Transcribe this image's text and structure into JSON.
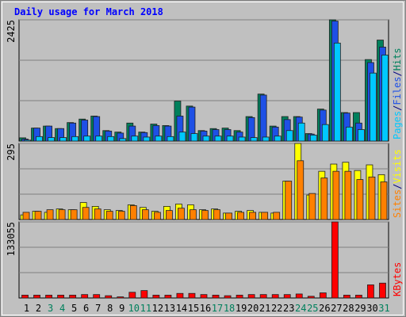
{
  "chart_data": {
    "type": "bar",
    "title": "Daily usage for March 2018",
    "categories": [
      "1",
      "2",
      "3",
      "4",
      "5",
      "6",
      "7",
      "8",
      "9",
      "10",
      "11",
      "12",
      "13",
      "14",
      "15",
      "16",
      "17",
      "18",
      "19",
      "20",
      "21",
      "22",
      "23",
      "24",
      "25",
      "26",
      "27",
      "28",
      "29",
      "30",
      "31"
    ],
    "category_colors": [
      "#000000",
      "#000000",
      "#00805c",
      "#00805c",
      "#000000",
      "#000000",
      "#000000",
      "#000000",
      "#000000",
      "#00805c",
      "#00805c",
      "#000000",
      "#000000",
      "#000000",
      "#000000",
      "#000000",
      "#00805c",
      "#00805c",
      "#000000",
      "#000000",
      "#000000",
      "#000000",
      "#000000",
      "#00805c",
      "#00805c",
      "#000000",
      "#000000",
      "#000000",
      "#000000",
      "#000000",
      "#00805c"
    ],
    "legend_separator": "/",
    "grid": true,
    "grid_divisions": 3,
    "panels": [
      {
        "ylim": [
          0,
          2425
        ],
        "yticks": [
          2425
        ],
        "series": [
          {
            "name": "Hits",
            "color": "#00805c",
            "values": [
              65,
              260,
              300,
              250,
              370,
              440,
              500,
              210,
              180,
              360,
              180,
              340,
              310,
              800,
              700,
              210,
              250,
              260,
              210,
              490,
              940,
              300,
              490,
              490,
              150,
              640,
              2425,
              570,
              570,
              1630,
              2020
            ]
          },
          {
            "name": "Files",
            "color": "#1e50e6",
            "values": [
              40,
              260,
              300,
              250,
              360,
              420,
              490,
              200,
              160,
              300,
              170,
              310,
              300,
              500,
              680,
              200,
              230,
              230,
              180,
              470,
              920,
              280,
              430,
              480,
              140,
              620,
              2400,
              560,
              360,
              1570,
              1880
            ]
          },
          {
            "name": "Pages",
            "color": "#00c8ff",
            "values": [
              20,
              90,
              70,
              70,
              90,
              100,
              100,
              90,
              50,
              100,
              80,
              100,
              90,
              180,
              150,
              100,
              100,
              100,
              80,
              70,
              80,
              100,
              210,
              360,
              120,
              330,
              1960,
              280,
              230,
              1360,
              1720
            ]
          }
        ]
      },
      {
        "ylim": [
          0,
          295
        ],
        "yticks": [
          295
        ],
        "series": [
          {
            "name": "Visits",
            "color": "#ffff00",
            "values": [
              18,
              32,
              28,
              41,
              38,
              66,
              51,
              38,
              35,
              57,
              47,
              32,
              51,
              60,
              57,
              38,
              41,
              25,
              32,
              35,
              28,
              25,
              149,
              295,
              95,
              187,
              215,
              222,
              190,
              212,
              174
            ]
          },
          {
            "name": "Sites",
            "color": "#ff8000",
            "values": [
              28,
              32,
              38,
              38,
              38,
              47,
              41,
              32,
              32,
              54,
              38,
              28,
              35,
              44,
              38,
              35,
              38,
              25,
              28,
              28,
              28,
              28,
              149,
              228,
              101,
              161,
              187,
              187,
              155,
              165,
              146
            ]
          }
        ]
      },
      {
        "ylim": [
          0,
          133055
        ],
        "yticks": [
          133055
        ],
        "series": [
          {
            "name": "KBytes",
            "color": "#ff0000",
            "values": [
              5000,
              5000,
              5000,
              5000,
              5000,
              6000,
              6000,
              4000,
              2000,
              10000,
              13000,
              5000,
              5000,
              8000,
              8000,
              6000,
              5000,
              4000,
              5000,
              6000,
              6000,
              6000,
              6000,
              7000,
              3000,
              9000,
              133055,
              5000,
              5000,
              23000,
              26000
            ]
          }
        ]
      }
    ]
  }
}
